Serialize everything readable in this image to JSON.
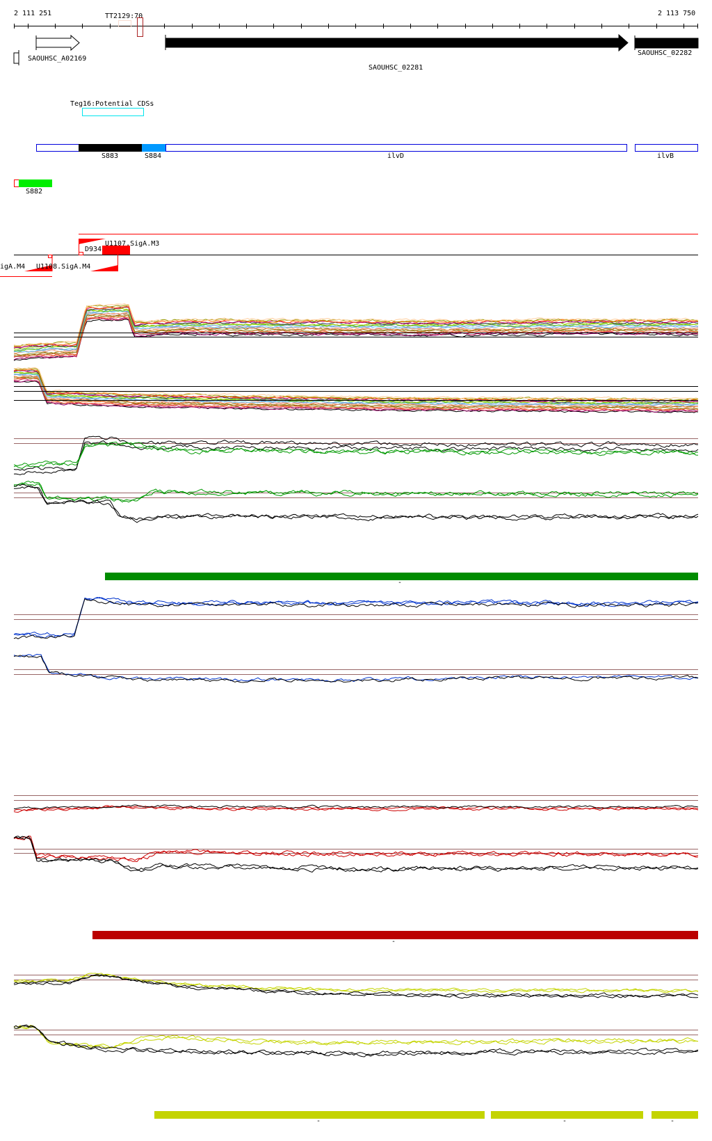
{
  "ruler": {
    "start_label": "2 111 251",
    "end_label": "2 113 750",
    "start_bp": 2111251,
    "end_bp": 2113750
  },
  "terminator": {
    "label": "TT2129:70"
  },
  "genes": [
    {
      "label": "SAOUHSC_A02169"
    },
    {
      "label": "SAOUHSC_02281"
    },
    {
      "label": "SAOUHSC_02282"
    }
  ],
  "potential_cds": {
    "label": "Teg16:Potential CDSs"
  },
  "operon_features": [
    {
      "label": "S883",
      "color": "#000000"
    },
    {
      "label": "S884",
      "color": "#0099ff"
    },
    {
      "label": "ilvD",
      "color": "#0000dd"
    },
    {
      "label": "ilvB",
      "color": "#0000dd"
    }
  ],
  "segment": {
    "label": "S882",
    "color": "#00ee00"
  },
  "promoters": {
    "upper_label": "U1107.SigA.M3",
    "d_label": "D934",
    "lower_left_label": "igA.M4",
    "lower_label": "U1108.SigA.M4"
  },
  "colors": {
    "reference_line": "#996666",
    "green_bar": "#008c00",
    "red_bar": "#bb0000",
    "yellow_bar": "#c4d400"
  },
  "bar_ticks": {
    "green": "-",
    "red": "-",
    "yellow": [
      "-",
      "-",
      "-"
    ]
  },
  "tracks": {
    "multi_colors": [
      "#000000",
      "#990066",
      "#cc3366",
      "#ff6633",
      "#cc6633",
      "#999933",
      "#996600",
      "#ff9966",
      "#cc9999",
      "#66ccff",
      "#6699cc",
      "#66cc00",
      "#99cc00",
      "#333366",
      "#cc0066",
      "#ff6600",
      "#999900",
      "#ffcc99"
    ],
    "A": [
      [
        2111251,
        18
      ],
      [
        2111400,
        22
      ],
      [
        2111480,
        22
      ],
      [
        2111515,
        88
      ],
      [
        2111670,
        90
      ],
      [
        2111690,
        60
      ],
      [
        2111900,
        64
      ],
      [
        2112200,
        63
      ],
      [
        2112800,
        62
      ],
      [
        2113300,
        64
      ],
      [
        2113750,
        63
      ]
    ],
    "B": [
      [
        2111251,
        88
      ],
      [
        2111340,
        88
      ],
      [
        2111370,
        42
      ],
      [
        2111500,
        40
      ],
      [
        2111700,
        36
      ],
      [
        2112200,
        32
      ],
      [
        2112800,
        28
      ],
      [
        2113750,
        26
      ]
    ],
    "C": [
      {
        "color": "#000000",
        "points": [
          [
            2111251,
            20
          ],
          [
            2111480,
            24
          ],
          [
            2111510,
            80
          ],
          [
            2111620,
            80
          ],
          [
            2111700,
            70
          ],
          [
            2112000,
            72
          ],
          [
            2112400,
            70
          ],
          [
            2112900,
            68
          ],
          [
            2113600,
            69
          ],
          [
            2113750,
            68
          ]
        ]
      },
      {
        "color": "#000000",
        "points": [
          [
            2111251,
            14
          ],
          [
            2111480,
            18
          ],
          [
            2111510,
            72
          ],
          [
            2111620,
            72
          ],
          [
            2111700,
            62
          ],
          [
            2112000,
            64
          ],
          [
            2112400,
            62
          ],
          [
            2112900,
            60
          ],
          [
            2113600,
            61
          ],
          [
            2113750,
            60
          ]
        ]
      },
      {
        "color": "#009900",
        "points": [
          [
            2111251,
            28
          ],
          [
            2111480,
            35
          ],
          [
            2111510,
            70
          ],
          [
            2111620,
            70
          ],
          [
            2111900,
            58
          ],
          [
            2112500,
            56
          ],
          [
            2113750,
            54
          ]
        ]
      },
      {
        "color": "#009900",
        "points": [
          [
            2111251,
            25
          ],
          [
            2111480,
            32
          ],
          [
            2111510,
            67
          ],
          [
            2111620,
            67
          ],
          [
            2111900,
            55
          ],
          [
            2112500,
            54
          ],
          [
            2113750,
            52
          ]
        ]
      }
    ],
    "D": [
      {
        "color": "#009900",
        "points": [
          [
            2111251,
            85
          ],
          [
            2111340,
            87
          ],
          [
            2111370,
            57
          ],
          [
            2111600,
            54
          ],
          [
            2111700,
            52
          ],
          [
            2111760,
            70
          ],
          [
            2111900,
            68
          ],
          [
            2113750,
            65
          ]
        ]
      },
      {
        "color": "#009900",
        "points": [
          [
            2111251,
            83
          ],
          [
            2111340,
            86
          ],
          [
            2111370,
            55
          ],
          [
            2111600,
            52
          ],
          [
            2111700,
            50
          ],
          [
            2111760,
            68
          ],
          [
            2111900,
            66
          ],
          [
            2113750,
            63
          ]
        ]
      },
      {
        "color": "#000000",
        "points": [
          [
            2111251,
            80
          ],
          [
            2111340,
            80
          ],
          [
            2111370,
            45
          ],
          [
            2111600,
            48
          ],
          [
            2111640,
            22
          ],
          [
            2111700,
            14
          ],
          [
            2111800,
            19
          ],
          [
            2112000,
            20
          ],
          [
            2112500,
            18
          ],
          [
            2113000,
            17
          ],
          [
            2113750,
            20
          ]
        ]
      },
      {
        "color": "#000000",
        "points": [
          [
            2111251,
            78
          ],
          [
            2111340,
            78
          ],
          [
            2111370,
            44
          ],
          [
            2111600,
            47
          ],
          [
            2111640,
            18
          ],
          [
            2111700,
            10
          ],
          [
            2111800,
            16
          ],
          [
            2112000,
            18
          ],
          [
            2112500,
            16
          ],
          [
            2113000,
            15
          ],
          [
            2113750,
            18
          ]
        ]
      }
    ],
    "E": [
      {
        "color": "#0033cc",
        "points": [
          [
            2111251,
            12
          ],
          [
            2111470,
            14
          ],
          [
            2111510,
            92
          ],
          [
            2111600,
            90
          ],
          [
            2111700,
            82
          ],
          [
            2112000,
            84
          ],
          [
            2112500,
            82
          ],
          [
            2113000,
            84
          ],
          [
            2113500,
            82
          ],
          [
            2113750,
            84
          ]
        ]
      },
      {
        "color": "#0033cc",
        "points": [
          [
            2111251,
            10
          ],
          [
            2111470,
            12
          ],
          [
            2111510,
            90
          ],
          [
            2111600,
            88
          ],
          [
            2111700,
            80
          ],
          [
            2112000,
            82
          ],
          [
            2112500,
            80
          ],
          [
            2113000,
            82
          ],
          [
            2113500,
            80
          ],
          [
            2113750,
            82
          ]
        ]
      },
      {
        "color": "#000000",
        "points": [
          [
            2111251,
            6
          ],
          [
            2111470,
            8
          ],
          [
            2111510,
            88
          ],
          [
            2111600,
            86
          ],
          [
            2111700,
            77
          ],
          [
            2112000,
            79
          ],
          [
            2112500,
            77
          ],
          [
            2113000,
            79
          ],
          [
            2113500,
            77
          ],
          [
            2113750,
            79
          ]
        ]
      }
    ],
    "F": [
      {
        "color": "#0033cc",
        "points": [
          [
            2111251,
            95
          ],
          [
            2111350,
            95
          ],
          [
            2111380,
            55
          ],
          [
            2111500,
            50
          ],
          [
            2111700,
            40
          ],
          [
            2112500,
            38
          ],
          [
            2113000,
            45
          ],
          [
            2113750,
            45
          ]
        ]
      },
      {
        "color": "#000000",
        "points": [
          [
            2111251,
            92
          ],
          [
            2111350,
            92
          ],
          [
            2111380,
            53
          ],
          [
            2111500,
            48
          ],
          [
            2111700,
            38
          ],
          [
            2112500,
            36
          ],
          [
            2113000,
            42
          ],
          [
            2113750,
            43
          ]
        ]
      }
    ],
    "G": [
      {
        "color": "#cc0000",
        "points": [
          [
            2111251,
            45
          ],
          [
            2111600,
            58
          ],
          [
            2112000,
            52
          ],
          [
            2113750,
            52
          ]
        ]
      },
      {
        "color": "#cc0000",
        "points": [
          [
            2111251,
            42
          ],
          [
            2111600,
            55
          ],
          [
            2112000,
            50
          ],
          [
            2113750,
            50
          ]
        ]
      },
      {
        "color": "#000000",
        "points": [
          [
            2111251,
            52
          ],
          [
            2111600,
            60
          ],
          [
            2112000,
            56
          ],
          [
            2113750,
            56
          ]
        ]
      }
    ],
    "H": [
      {
        "color": "#cc0000",
        "points": [
          [
            2111251,
            85
          ],
          [
            2111310,
            90
          ],
          [
            2111335,
            50
          ],
          [
            2111600,
            48
          ],
          [
            2111700,
            42
          ],
          [
            2111800,
            60
          ],
          [
            2112200,
            55
          ],
          [
            2113750,
            55
          ]
        ]
      },
      {
        "color": "#cc0000",
        "points": [
          [
            2111251,
            84
          ],
          [
            2111310,
            89
          ],
          [
            2111335,
            48
          ],
          [
            2111600,
            46
          ],
          [
            2111700,
            40
          ],
          [
            2111800,
            58
          ],
          [
            2112200,
            53
          ],
          [
            2113750,
            53
          ]
        ]
      },
      {
        "color": "#000000",
        "points": [
          [
            2111251,
            85
          ],
          [
            2111310,
            90
          ],
          [
            2111335,
            42
          ],
          [
            2111600,
            40
          ],
          [
            2111700,
            20
          ],
          [
            2111800,
            32
          ],
          [
            2112500,
            24
          ],
          [
            2113750,
            27
          ]
        ]
      },
      {
        "color": "#000000",
        "points": [
          [
            2111251,
            84
          ],
          [
            2111310,
            89
          ],
          [
            2111335,
            40
          ],
          [
            2111600,
            38
          ],
          [
            2111700,
            17
          ],
          [
            2111800,
            29
          ],
          [
            2112500,
            21
          ],
          [
            2113750,
            24
          ]
        ]
      }
    ],
    "I": [
      {
        "color": "#c4d400",
        "points": [
          [
            2111251,
            70
          ],
          [
            2111450,
            72
          ],
          [
            2111550,
            92
          ],
          [
            2111650,
            80
          ],
          [
            2111900,
            60
          ],
          [
            2112400,
            45
          ],
          [
            2112900,
            45
          ],
          [
            2113750,
            42
          ]
        ]
      },
      {
        "color": "#c4d400",
        "points": [
          [
            2111251,
            68
          ],
          [
            2111450,
            70
          ],
          [
            2111550,
            90
          ],
          [
            2111650,
            78
          ],
          [
            2111900,
            58
          ],
          [
            2112400,
            43
          ],
          [
            2112900,
            43
          ],
          [
            2113750,
            40
          ]
        ]
      },
      {
        "color": "#000000",
        "points": [
          [
            2111251,
            62
          ],
          [
            2111450,
            68
          ],
          [
            2111550,
            90
          ],
          [
            2111650,
            76
          ],
          [
            2111900,
            54
          ],
          [
            2112400,
            36
          ],
          [
            2112900,
            30
          ],
          [
            2113750,
            30
          ]
        ]
      },
      {
        "color": "#000000",
        "points": [
          [
            2111251,
            58
          ],
          [
            2111450,
            65
          ],
          [
            2111550,
            88
          ],
          [
            2111650,
            74
          ],
          [
            2111900,
            50
          ],
          [
            2112400,
            32
          ],
          [
            2112900,
            26
          ],
          [
            2113750,
            26
          ]
        ]
      }
    ],
    "J": [
      {
        "color": "#c4d400",
        "points": [
          [
            2111251,
            85
          ],
          [
            2111330,
            85
          ],
          [
            2111380,
            50
          ],
          [
            2111600,
            38
          ],
          [
            2111750,
            62
          ],
          [
            2112300,
            50
          ],
          [
            2113750,
            55
          ]
        ]
      },
      {
        "color": "#c4d400",
        "points": [
          [
            2111251,
            84
          ],
          [
            2111330,
            84
          ],
          [
            2111380,
            48
          ],
          [
            2111600,
            36
          ],
          [
            2111750,
            58
          ],
          [
            2112300,
            48
          ],
          [
            2113750,
            52
          ]
        ]
      },
      {
        "color": "#000000",
        "points": [
          [
            2111251,
            85
          ],
          [
            2111330,
            85
          ],
          [
            2111380,
            50
          ],
          [
            2111600,
            34
          ],
          [
            2111750,
            32
          ],
          [
            2112500,
            26
          ],
          [
            2113000,
            30
          ],
          [
            2113750,
            30
          ]
        ]
      },
      {
        "color": "#000000",
        "points": [
          [
            2111251,
            84
          ],
          [
            2111330,
            84
          ],
          [
            2111380,
            48
          ],
          [
            2111600,
            32
          ],
          [
            2111750,
            28
          ],
          [
            2112500,
            22
          ],
          [
            2113000,
            26
          ],
          [
            2113750,
            26
          ]
        ]
      }
    ]
  }
}
